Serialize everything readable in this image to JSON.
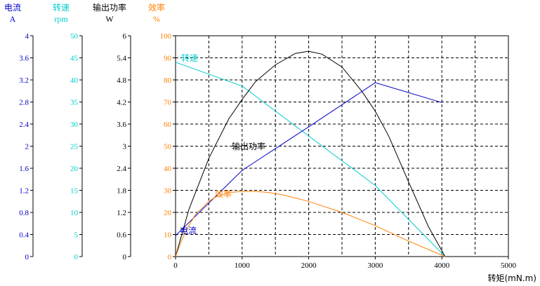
{
  "chart_data": {
    "type": "line",
    "xlabel": "转矩(mN.m)",
    "x_ticks": [
      "0",
      "1000",
      "2000",
      "3000",
      "4000",
      "5000"
    ],
    "xlim": [
      0,
      5000
    ],
    "grid": true,
    "axes": [
      {
        "id": "current",
        "name": "电流",
        "unit": "A",
        "color": "#0000cc",
        "ylim": [
          0,
          4
        ],
        "ticks": [
          "0",
          "0.4",
          "0.8",
          "1.2",
          "1.6",
          "2",
          "2.4",
          "2.8",
          "3.2",
          "3.6",
          "4"
        ]
      },
      {
        "id": "speed",
        "name": "转速",
        "unit": "rpm",
        "color": "#00cccc",
        "ylim": [
          0,
          50
        ],
        "ticks": [
          "0",
          "5",
          "10",
          "15",
          "20",
          "25",
          "30",
          "35",
          "40",
          "45",
          "50"
        ]
      },
      {
        "id": "power",
        "name": "输出功率",
        "unit": "W",
        "color": "#000000",
        "ylim": [
          0,
          6
        ],
        "ticks": [
          "0",
          "0.6",
          "1.2",
          "1.8",
          "2.4",
          "3",
          "3.6",
          "4.2",
          "4.8",
          "5.4",
          "6"
        ]
      },
      {
        "id": "efficiency",
        "name": "效率",
        "unit": "%",
        "color": "#ff8000",
        "ylim": [
          0,
          100
        ],
        "ticks": [
          "0",
          "10",
          "20",
          "30",
          "40",
          "50",
          "60",
          "70",
          "80",
          "90",
          "100"
        ]
      }
    ],
    "series": [
      {
        "name": "转速",
        "axis": "speed",
        "color": "#00cccc",
        "points": [
          [
            0,
            44
          ],
          [
            1000,
            38.6
          ],
          [
            2000,
            27.3
          ],
          [
            3000,
            16.1
          ],
          [
            4050,
            0
          ]
        ]
      },
      {
        "name": "电流",
        "axis": "current",
        "color": "#0000cc",
        "points": [
          [
            0,
            0.38
          ],
          [
            1000,
            1.56
          ],
          [
            2000,
            2.35
          ],
          [
            3000,
            3.15
          ],
          [
            4000,
            2.79
          ]
        ]
      },
      {
        "name": "输出功率",
        "axis": "power",
        "color": "#000000",
        "points": [
          [
            0,
            0
          ],
          [
            200,
            1.28
          ],
          [
            500,
            2.67
          ],
          [
            800,
            3.74
          ],
          [
            1000,
            4.27
          ],
          [
            1200,
            4.75
          ],
          [
            1500,
            5.21
          ],
          [
            1800,
            5.52
          ],
          [
            2000,
            5.58
          ],
          [
            2200,
            5.5
          ],
          [
            2500,
            5.15
          ],
          [
            2800,
            4.49
          ],
          [
            3000,
            3.95
          ],
          [
            3200,
            3.28
          ],
          [
            3500,
            2.03
          ],
          [
            3800,
            0.81
          ],
          [
            4050,
            0
          ]
        ]
      },
      {
        "name": "效率",
        "axis": "efficiency",
        "color": "#ff8000",
        "points": [
          [
            0,
            0
          ],
          [
            100,
            8
          ],
          [
            200,
            14
          ],
          [
            300,
            19
          ],
          [
            400,
            22
          ],
          [
            500,
            25
          ],
          [
            600,
            27
          ],
          [
            800,
            29
          ],
          [
            1000,
            29.5
          ],
          [
            1200,
            29.5
          ],
          [
            1400,
            29
          ],
          [
            1600,
            28
          ],
          [
            2000,
            25
          ],
          [
            2500,
            20
          ],
          [
            3000,
            14
          ],
          [
            3500,
            7
          ],
          [
            4050,
            0
          ]
        ]
      }
    ]
  }
}
